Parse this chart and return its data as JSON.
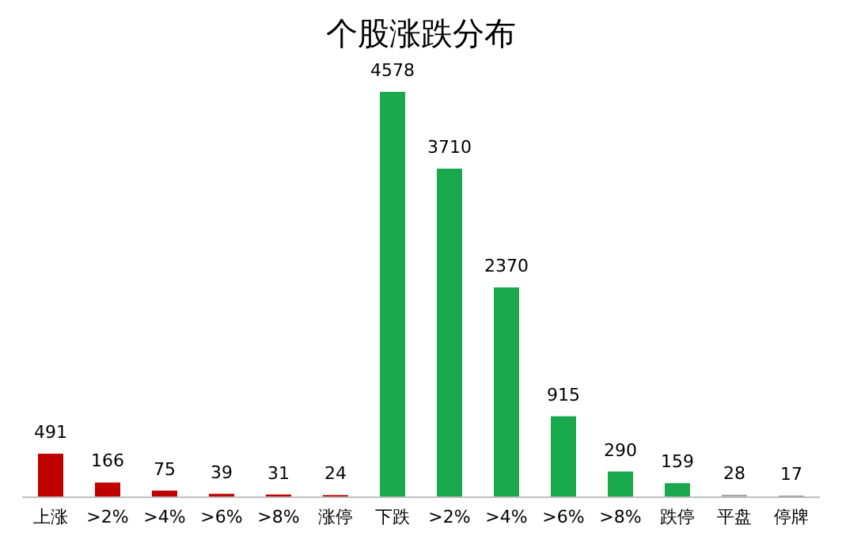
{
  "chart_data": {
    "type": "bar",
    "title": "个股涨跌分布",
    "categories": [
      "上涨",
      ">2%",
      ">4%",
      ">6%",
      ">8%",
      "涨停",
      "下跌",
      ">2%",
      ">4%",
      ">6%",
      ">8%",
      "跌停",
      "平盘",
      "停牌"
    ],
    "values": [
      491,
      166,
      75,
      39,
      31,
      24,
      4578,
      3710,
      2370,
      915,
      290,
      159,
      28,
      17
    ],
    "colors": [
      "#c00000",
      "#c00000",
      "#c00000",
      "#c00000",
      "#c00000",
      "#c00000",
      "#1aa84c",
      "#1aa84c",
      "#1aa84c",
      "#1aa84c",
      "#1aa84c",
      "#1aa84c",
      "#a6a6a6",
      "#7f7f7f"
    ],
    "data_labels": true,
    "grid": false,
    "legend": false
  }
}
